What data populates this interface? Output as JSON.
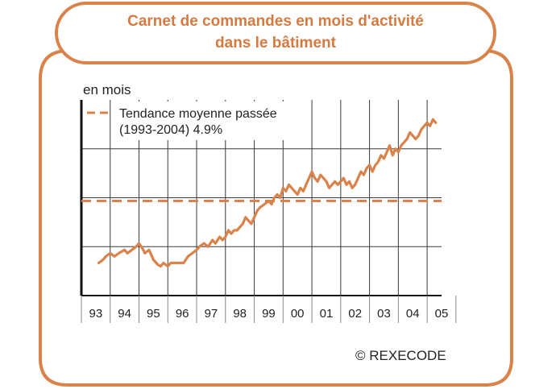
{
  "header": {
    "title_line1": "Carnet de commandes en mois d'activité",
    "title_line2": "dans le bâtiment"
  },
  "footer": {
    "copyright": "© REXECODE"
  },
  "colors": {
    "accent": "#d9834a",
    "text_title": "#d57a40",
    "grid": "#333333",
    "text": "#222222",
    "background": "#ffffff"
  },
  "chart_data": {
    "type": "line",
    "title": "",
    "ylabel": "en mois",
    "xlabel": "",
    "categories": [
      "93",
      "94",
      "95",
      "96",
      "97",
      "98",
      "99",
      "00",
      "01",
      "02",
      "03",
      "04",
      "05"
    ],
    "yticks_labeled": false,
    "grid": true,
    "legend": {
      "placement": "top-left",
      "entries": [
        "Tendance moyenne passée",
        "(1993-2004) 4.9%"
      ]
    },
    "series": [
      {
        "name": "",
        "style": "solid",
        "x": [
          1993.6,
          1993.75,
          1993.85,
          1994.0,
          1994.15,
          1994.3,
          1994.5,
          1994.6,
          1994.75,
          1994.9,
          1995.0,
          1995.15,
          1995.2,
          1995.35,
          1995.5,
          1995.65,
          1995.75,
          1995.85,
          1996.0,
          1996.1,
          1996.2,
          1996.35,
          1996.45,
          1996.55,
          1996.7,
          1996.85,
          1997.0,
          1997.1,
          1997.25,
          1997.4,
          1997.55,
          1997.65,
          1997.8,
          1997.9,
          1998.0,
          1998.1,
          1998.2,
          1998.3,
          1998.4,
          1998.5,
          1998.6,
          1998.7,
          1998.8,
          1998.9,
          1999.0,
          1999.1,
          1999.2,
          1999.35,
          1999.5,
          1999.6,
          1999.7,
          1999.8,
          1999.9,
          2000.0,
          2000.1,
          2000.2,
          2000.3,
          2000.4,
          2000.5,
          2000.6,
          2000.7,
          2000.8,
          2000.9,
          2001.0,
          2001.1,
          2001.2,
          2001.3,
          2001.4,
          2001.5,
          2001.6,
          2001.7,
          2001.8,
          2001.9,
          2002.0,
          2002.1,
          2002.2,
          2002.3,
          2002.4,
          2002.5,
          2002.6,
          2002.7,
          2002.8,
          2002.9,
          2003.0,
          2003.1,
          2003.2,
          2003.3,
          2003.4,
          2003.5,
          2003.6,
          2003.7,
          2003.8,
          2003.9,
          2004.0,
          2004.1,
          2004.2,
          2004.3,
          2004.4,
          2004.5,
          2004.6,
          2004.7,
          2004.8,
          2004.9,
          2005.0,
          2005.1,
          2005.2,
          2005.3
        ],
        "y": [
          4.0,
          4.1,
          4.2,
          4.3,
          4.2,
          4.3,
          4.4,
          4.3,
          4.4,
          4.5,
          4.6,
          4.4,
          4.3,
          4.4,
          4.1,
          3.95,
          3.9,
          4.0,
          3.9,
          4.0,
          4.0,
          4.0,
          4.0,
          4.0,
          4.2,
          4.3,
          4.4,
          4.5,
          4.6,
          4.5,
          4.7,
          4.6,
          4.8,
          4.7,
          4.8,
          5.0,
          4.9,
          5.0,
          5.0,
          5.1,
          5.2,
          5.4,
          5.3,
          5.2,
          5.4,
          5.6,
          5.7,
          5.8,
          5.9,
          5.8,
          6.0,
          6.1,
          6.0,
          6.3,
          6.2,
          6.4,
          6.3,
          6.2,
          6.1,
          6.3,
          6.2,
          6.4,
          6.6,
          6.8,
          6.6,
          6.5,
          6.7,
          6.6,
          6.5,
          6.3,
          6.4,
          6.5,
          6.4,
          6.5,
          6.6,
          6.4,
          6.5,
          6.3,
          6.4,
          6.6,
          6.8,
          6.7,
          6.9,
          7.0,
          6.8,
          7.0,
          7.1,
          7.3,
          7.2,
          7.4,
          7.6,
          7.3,
          7.5,
          7.4,
          7.6,
          7.7,
          7.8,
          8.0,
          7.9,
          7.8,
          7.9,
          8.1,
          8.2,
          8.3,
          8.2,
          8.4,
          8.3
        ]
      },
      {
        "name": "Tendance moyenne passée",
        "style": "dashed",
        "x": [
          1993.0,
          2005.5
        ],
        "y": [
          5.9,
          5.9
        ]
      }
    ],
    "xlim": [
      1993.0,
      2005.5
    ],
    "ylim": [
      3.0,
      9.0
    ]
  }
}
